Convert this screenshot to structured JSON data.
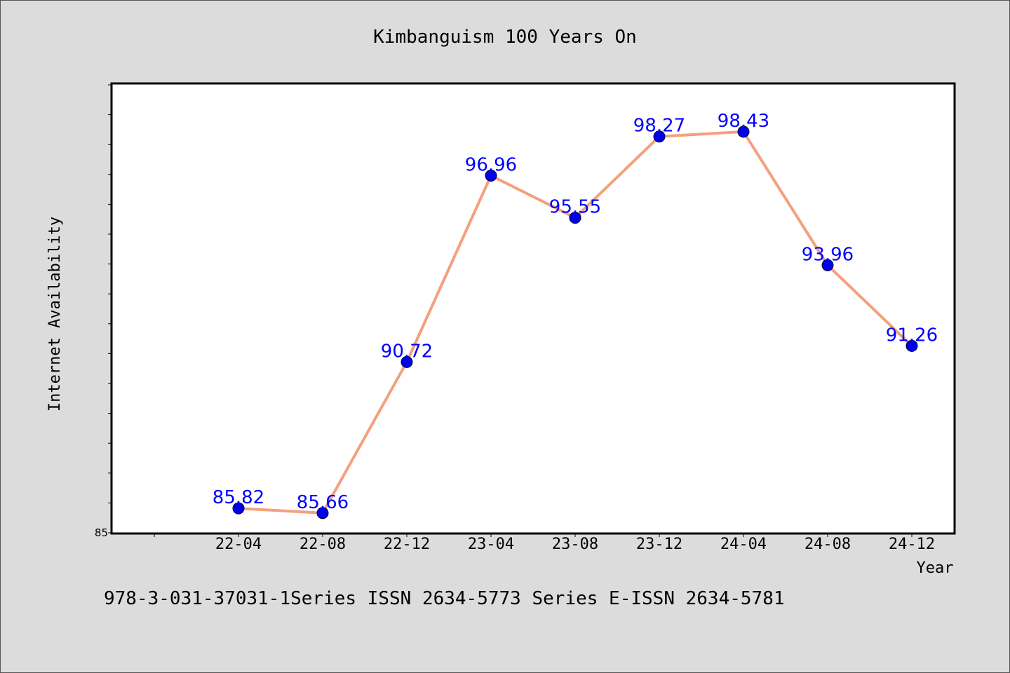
{
  "chart_data": {
    "type": "line",
    "title": "Kimbanguism 100 Years On",
    "xlabel": "Year",
    "ylabel": "Internet Availability",
    "categories": [
      "22-04",
      "22-08",
      "22-12",
      "23-04",
      "23-08",
      "23-12",
      "24-04",
      "24-08",
      "24-12"
    ],
    "series": [
      {
        "values": [
          85.82,
          85.66,
          90.72,
          96.96,
          95.55,
          98.27,
          98.43,
          93.96,
          91.26
        ],
        "labels": [
          "85.82",
          "85.66",
          "90.72",
          "96.96",
          "95.55",
          "98.27",
          "98.43",
          "93.96",
          "91.26"
        ]
      }
    ],
    "ylim": [
      85,
      100
    ],
    "yticks": [
      85
    ],
    "y_minor_step": 1,
    "grid": false,
    "colors": {
      "line": "#f4a07f",
      "marker": "#0000ee",
      "label": "#0000ff",
      "background": "#dcdcdc",
      "plot_bg": "#ffffff"
    }
  },
  "footnote": "978-3-031-37031-1Series ISSN 2634-5773 Series E-ISSN 2634-5781"
}
